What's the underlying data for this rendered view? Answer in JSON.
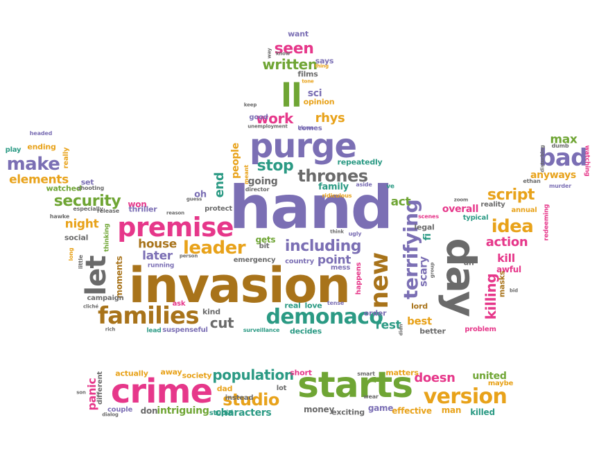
{
  "palette": {
    "green": "#6fa534",
    "orange": "#e8a21a",
    "brown": "#a8731a",
    "purple": "#7b6fb4",
    "magenta": "#e6378a",
    "teal": "#2b9a84",
    "gray": "#6a6a6a"
  },
  "words": [
    {
      "text": "hand",
      "color": "purple"
    },
    {
      "text": "invasion",
      "color": "brown"
    },
    {
      "text": "day",
      "color": "gray"
    },
    {
      "text": "starts",
      "color": "green"
    },
    {
      "text": "crime",
      "color": "magenta"
    },
    {
      "text": "purge",
      "color": "purple"
    },
    {
      "text": "premise",
      "color": "magenta"
    },
    {
      "text": "families",
      "color": "brown"
    },
    {
      "text": "let",
      "color": "gray"
    },
    {
      "text": "demonaco",
      "color": "teal"
    },
    {
      "text": "new",
      "color": "brown"
    },
    {
      "text": "terrifying",
      "color": "purple"
    },
    {
      "text": "bad",
      "color": "purple"
    },
    {
      "text": "ll",
      "color": "green"
    },
    {
      "text": "version",
      "color": "orange"
    },
    {
      "text": "make",
      "color": "purple"
    },
    {
      "text": "leader",
      "color": "orange"
    },
    {
      "text": "studio",
      "color": "orange"
    },
    {
      "text": "idea",
      "color": "orange"
    },
    {
      "text": "thrones",
      "color": "gray"
    },
    {
      "text": "including",
      "color": "purple"
    },
    {
      "text": "security",
      "color": "green"
    },
    {
      "text": "seen",
      "color": "magenta"
    },
    {
      "text": "population",
      "color": "teal"
    },
    {
      "text": "script",
      "color": "orange"
    },
    {
      "text": "killing",
      "color": "magenta"
    },
    {
      "text": "stop",
      "color": "teal"
    },
    {
      "text": "work",
      "color": "magenta"
    },
    {
      "text": "rhys",
      "color": "orange"
    },
    {
      "text": "written",
      "color": "green"
    },
    {
      "text": "elements",
      "color": "orange"
    },
    {
      "text": "house",
      "color": "brown"
    },
    {
      "text": "later",
      "color": "purple"
    },
    {
      "text": "cut",
      "color": "gray"
    },
    {
      "text": "doesn",
      "color": "magenta"
    },
    {
      "text": "end",
      "color": "teal"
    },
    {
      "text": "point",
      "color": "purple"
    },
    {
      "text": "night",
      "color": "orange"
    },
    {
      "text": "max",
      "color": "green"
    },
    {
      "text": "action",
      "color": "magenta"
    },
    {
      "text": "rest",
      "color": "teal"
    },
    {
      "text": "best",
      "color": "orange"
    },
    {
      "text": "act",
      "color": "green"
    },
    {
      "text": "scary",
      "color": "purple"
    },
    {
      "text": "kill",
      "color": "magenta"
    },
    {
      "text": "panic",
      "color": "magenta"
    },
    {
      "text": "characters",
      "color": "teal"
    },
    {
      "text": "intriguing",
      "color": "green"
    },
    {
      "text": "united",
      "color": "green"
    },
    {
      "text": "people",
      "color": "orange"
    },
    {
      "text": "going",
      "color": "gray"
    },
    {
      "text": "anyways",
      "color": "orange"
    },
    {
      "text": "overall",
      "color": "magenta"
    },
    {
      "text": "family",
      "color": "teal"
    },
    {
      "text": "repeatedly",
      "color": "teal"
    },
    {
      "text": "money",
      "color": "gray"
    },
    {
      "text": "ending",
      "color": "orange"
    },
    {
      "text": "watched",
      "color": "green"
    },
    {
      "text": "won",
      "color": "magenta"
    },
    {
      "text": "thriller",
      "color": "purple"
    },
    {
      "text": "gets",
      "color": "green"
    },
    {
      "text": "bit",
      "color": "gray"
    },
    {
      "text": "emergency",
      "color": "gray"
    },
    {
      "text": "country",
      "color": "purple"
    },
    {
      "text": "moments",
      "color": "brown"
    },
    {
      "text": "campaign",
      "color": "gray"
    },
    {
      "text": "sci",
      "color": "purple"
    },
    {
      "text": "opinion",
      "color": "orange"
    },
    {
      "text": "films",
      "color": "gray"
    },
    {
      "text": "says",
      "color": "purple"
    },
    {
      "text": "want",
      "color": "purple"
    },
    {
      "text": "good",
      "color": "purple"
    },
    {
      "text": "comes",
      "color": "purple"
    },
    {
      "text": "real",
      "color": "teal"
    },
    {
      "text": "love",
      "color": "teal"
    },
    {
      "text": "kind",
      "color": "gray"
    },
    {
      "text": "lord",
      "color": "brown"
    },
    {
      "text": "decides",
      "color": "teal"
    },
    {
      "text": "suspenseful",
      "color": "purple"
    },
    {
      "text": "lead",
      "color": "teal"
    },
    {
      "text": "order",
      "color": "purple"
    },
    {
      "text": "happens",
      "color": "magenta"
    },
    {
      "text": "better",
      "color": "gray"
    },
    {
      "text": "problem",
      "color": "magenta"
    },
    {
      "text": "awful",
      "color": "magenta"
    },
    {
      "text": "masks",
      "color": "brown"
    },
    {
      "text": "typical",
      "color": "teal"
    },
    {
      "text": "reality",
      "color": "gray"
    },
    {
      "text": "annual",
      "color": "orange"
    },
    {
      "text": "legal",
      "color": "gray"
    },
    {
      "text": "social",
      "color": "gray"
    },
    {
      "text": "ask",
      "color": "magenta"
    },
    {
      "text": "protect",
      "color": "gray"
    },
    {
      "text": "oh",
      "color": "purple"
    },
    {
      "text": "actually",
      "color": "orange"
    },
    {
      "text": "away",
      "color": "orange"
    },
    {
      "text": "society",
      "color": "orange"
    },
    {
      "text": "dad",
      "color": "orange"
    },
    {
      "text": "instead",
      "color": "gray"
    },
    {
      "text": "short",
      "color": "magenta"
    },
    {
      "text": "lot",
      "color": "gray"
    },
    {
      "text": "matters",
      "color": "orange"
    },
    {
      "text": "maybe",
      "color": "orange"
    },
    {
      "text": "killed",
      "color": "teal"
    },
    {
      "text": "effective",
      "color": "orange"
    },
    {
      "text": "man",
      "color": "orange"
    },
    {
      "text": "game",
      "color": "purple"
    },
    {
      "text": "exciting",
      "color": "gray"
    },
    {
      "text": "stupid",
      "color": "teal"
    },
    {
      "text": "couple",
      "color": "purple"
    },
    {
      "text": "don",
      "color": "gray"
    },
    {
      "text": "different",
      "color": "gray"
    },
    {
      "text": "set",
      "color": "purple"
    },
    {
      "text": "play",
      "color": "teal"
    },
    {
      "text": "really",
      "color": "orange"
    },
    {
      "text": "headed",
      "color": "purple"
    },
    {
      "text": "hawke",
      "color": "gray"
    },
    {
      "text": "especially",
      "color": "gray"
    },
    {
      "text": "shooting",
      "color": "gray"
    },
    {
      "text": "release",
      "color": "gray"
    },
    {
      "text": "thinking",
      "color": "green"
    },
    {
      "text": "running",
      "color": "purple"
    },
    {
      "text": "ethan",
      "color": "gray"
    },
    {
      "text": "watching",
      "color": "magenta"
    },
    {
      "text": "disturbing",
      "color": "gray"
    },
    {
      "text": "dumb",
      "color": "gray"
    },
    {
      "text": "murder",
      "color": "purple"
    },
    {
      "text": "redeeming",
      "color": "magenta"
    },
    {
      "text": "fi",
      "color": "teal"
    },
    {
      "text": "uh",
      "color": "gray"
    },
    {
      "text": "ridiculous",
      "color": "orange"
    },
    {
      "text": "aside",
      "color": "purple"
    },
    {
      "text": "director",
      "color": "gray"
    },
    {
      "text": "meant",
      "color": "orange"
    },
    {
      "text": "ve",
      "color": "teal"
    },
    {
      "text": "mess",
      "color": "purple"
    },
    {
      "text": "tense",
      "color": "purple"
    },
    {
      "text": "unemployment",
      "color": "gray"
    },
    {
      "text": "blown",
      "color": "purple"
    },
    {
      "text": "keep",
      "color": "gray"
    },
    {
      "text": "scenes",
      "color": "magenta"
    },
    {
      "text": "ugly",
      "color": "purple"
    },
    {
      "text": "think",
      "color": "gray"
    },
    {
      "text": "surveillance",
      "color": "teal"
    },
    {
      "text": "smart",
      "color": "gray"
    },
    {
      "text": "wear",
      "color": "gray"
    },
    {
      "text": "dialog",
      "color": "gray"
    },
    {
      "text": "little",
      "color": "gray"
    },
    {
      "text": "long",
      "color": "orange"
    },
    {
      "text": "rich",
      "color": "gray"
    },
    {
      "text": "cliché",
      "color": "gray"
    },
    {
      "text": "thing",
      "color": "orange"
    },
    {
      "text": "tone",
      "color": "orange"
    },
    {
      "text": "way",
      "color": "gray"
    },
    {
      "text": "know",
      "color": "gray"
    },
    {
      "text": "guess",
      "color": "gray"
    },
    {
      "text": "reason",
      "color": "gray"
    },
    {
      "text": "person",
      "color": "gray"
    },
    {
      "text": "zoom",
      "color": "gray"
    },
    {
      "text": "group",
      "color": "gray"
    },
    {
      "text": "son",
      "color": "gray"
    },
    {
      "text": "bid",
      "color": "gray"
    },
    {
      "text": "didn",
      "color": "gray"
    }
  ]
}
